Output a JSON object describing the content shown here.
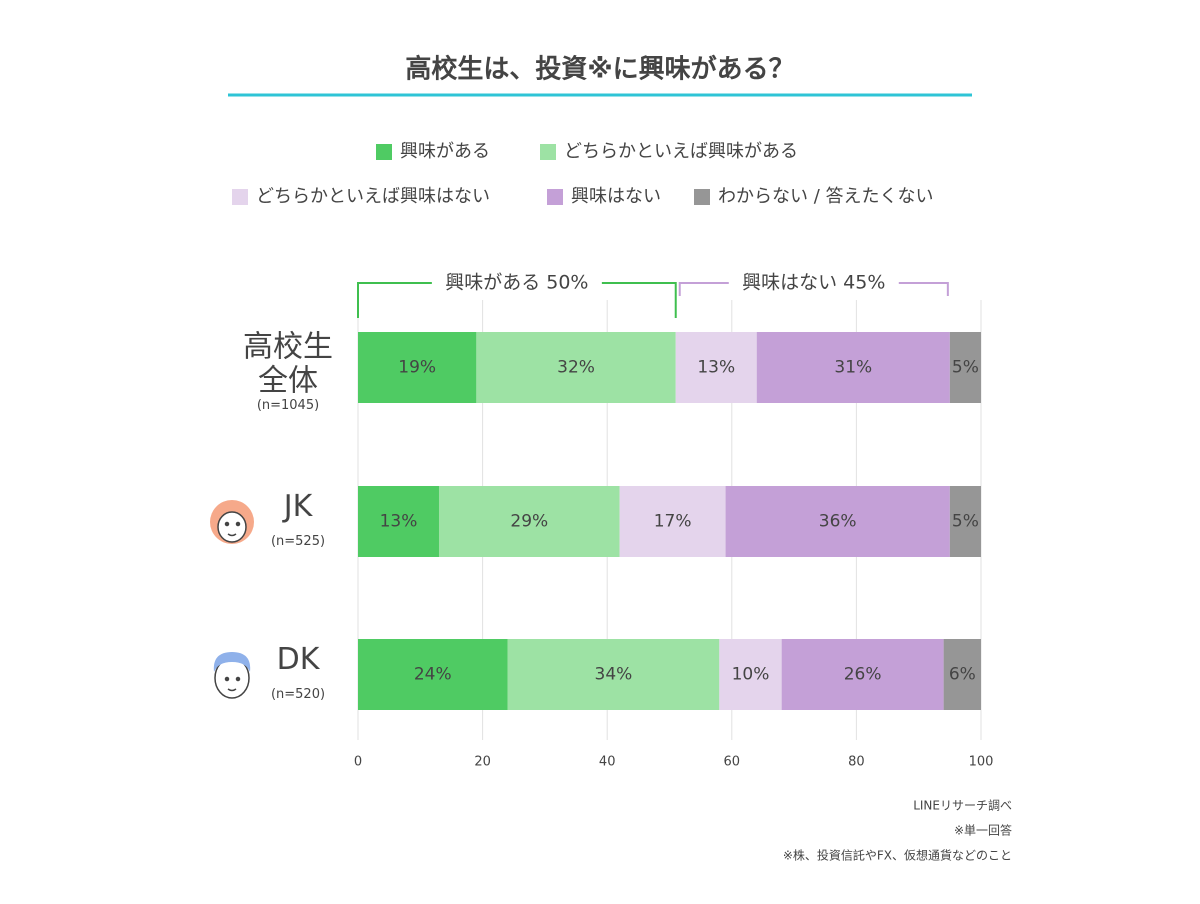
{
  "chart_data": {
    "type": "stacked-bar-horizontal",
    "title": "高校生は、投資※に興味がある？",
    "categories": [
      "高校生全体",
      "JK",
      "DK"
    ],
    "category_notes": [
      "(n=1045)",
      "(n=525)",
      "(n=520)"
    ],
    "series": [
      {
        "name": "興味がある",
        "color": "#4fcb63",
        "label_color": "#ffffff",
        "values": [
          19,
          13,
          24
        ],
        "value_labels": [
          "19%",
          "13%",
          "24%"
        ]
      },
      {
        "name": "どちらかといえば興味がある",
        "color": "#9de2a4",
        "label_color": "#555555",
        "values": [
          32,
          29,
          34
        ],
        "value_labels": [
          "32%",
          "29%",
          "34%"
        ]
      },
      {
        "name": "どちらかといえば興味はない",
        "color": "#e4d4ec",
        "label_color": "#555555",
        "values": [
          13,
          17,
          10
        ],
        "value_labels": [
          "13%",
          "17%",
          "10%"
        ]
      },
      {
        "name": "興味はない",
        "color": "#c4a0d7",
        "label_color": "#ffffff",
        "values": [
          31,
          36,
          26
        ],
        "value_labels": [
          "31%",
          "36%",
          "26%"
        ]
      },
      {
        "name": "わからない / 答えたくない",
        "color": "#969696",
        "label_color": "#ffffff",
        "values": [
          5,
          5,
          6
        ],
        "value_labels": [
          "5%",
          "5%",
          "6%"
        ]
      }
    ],
    "annotations": [
      {
        "text": "興味がある 50%",
        "color": "#3fbf4f"
      },
      {
        "text": "興味はない 45%",
        "color": "#c4a0d7"
      }
    ],
    "xlim": [
      0,
      100
    ],
    "xticks": [
      0,
      20,
      40,
      60,
      80,
      100
    ],
    "grid": true,
    "footnotes": [
      "LINEリサーチ調べ",
      "※単一回答",
      "※株、投資信託やFX、仮想通貨などのこと"
    ]
  }
}
